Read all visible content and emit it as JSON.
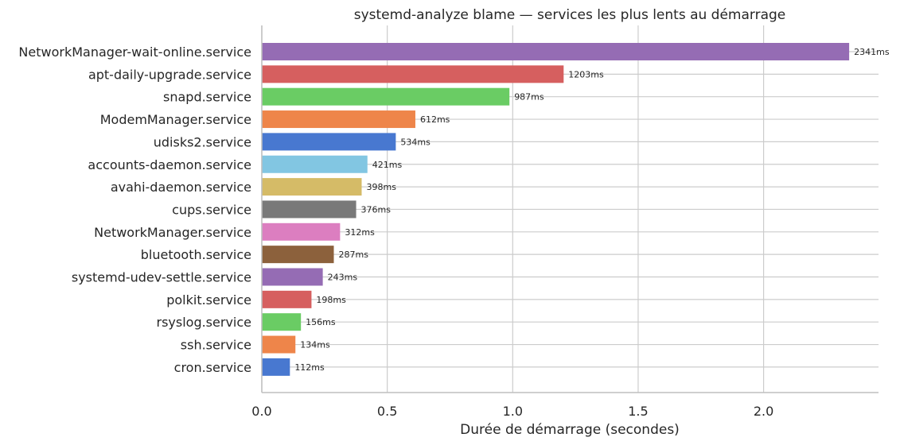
{
  "chart_data": {
    "type": "bar",
    "orientation": "horizontal",
    "title": "systemd-analyze blame — services les plus lents au démarrage",
    "xlabel": "Durée de démarrage (secondes)",
    "ylabel": "",
    "xlim": [
      0,
      2.458
    ],
    "xticks": [
      0.0,
      0.5,
      1.0,
      1.5,
      2.0
    ],
    "xtick_labels": [
      "0.0",
      "0.5",
      "1.0",
      "1.5",
      "2.0"
    ],
    "grid": true,
    "categories": [
      "NetworkManager-wait-online.service",
      "apt-daily-upgrade.service",
      "snapd.service",
      "ModemManager.service",
      "udisks2.service",
      "accounts-daemon.service",
      "avahi-daemon.service",
      "cups.service",
      "NetworkManager.service",
      "bluetooth.service",
      "systemd-udev-settle.service",
      "polkit.service",
      "rsyslog.service",
      "ssh.service",
      "cron.service"
    ],
    "values": [
      2.341,
      1.203,
      0.987,
      0.612,
      0.534,
      0.421,
      0.398,
      0.376,
      0.312,
      0.287,
      0.243,
      0.198,
      0.156,
      0.134,
      0.112
    ],
    "value_labels": [
      "2341ms",
      "1203ms",
      "987ms",
      "612ms",
      "534ms",
      "421ms",
      "398ms",
      "376ms",
      "312ms",
      "287ms",
      "243ms",
      "198ms",
      "156ms",
      "134ms",
      "112ms"
    ],
    "colors": [
      "#956cb4",
      "#d65f5f",
      "#6acc64",
      "#ee854a",
      "#4878d0",
      "#82c6e2",
      "#d5bb67",
      "#797979",
      "#dc7ec0",
      "#8c613c",
      "#956cb4",
      "#d65f5f",
      "#6acc64",
      "#ee854a",
      "#4878d0"
    ]
  }
}
